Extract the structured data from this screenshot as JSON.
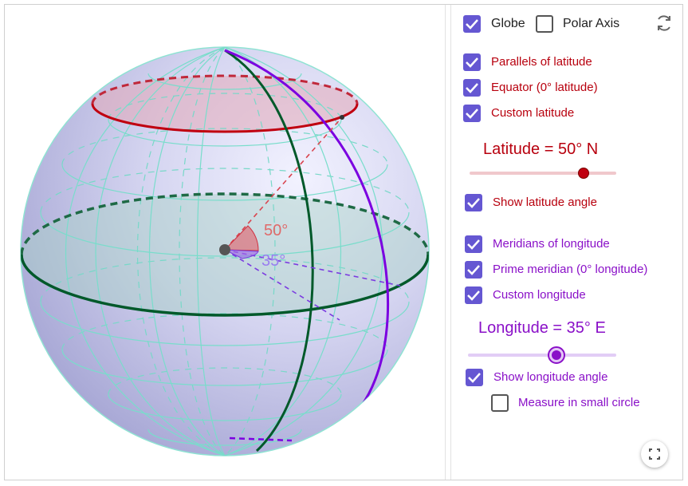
{
  "graphics": {
    "angle_latitude_label": "50°",
    "angle_longitude_label": "35°"
  },
  "panel": {
    "globe_label": "Globe",
    "globe_checked": true,
    "polar_axis_label": "Polar Axis",
    "polar_axis_checked": false,
    "parallels_label": "Parallels of latitude",
    "parallels_checked": true,
    "equator_label": "Equator (0° latitude)",
    "equator_checked": true,
    "custom_latitude_label": "Custom latitude",
    "custom_latitude_checked": true,
    "latitude_title": "Latitude = 50° N",
    "latitude_value": 50,
    "latitude_range": [
      -90,
      90
    ],
    "show_latitude_angle_label": "Show latitude angle",
    "show_latitude_angle_checked": true,
    "meridians_label": "Meridians of longitude",
    "meridians_checked": true,
    "prime_meridian_label": "Prime meridian (0° longitude)",
    "prime_meridian_checked": true,
    "custom_longitude_label": "Custom longitude",
    "custom_longitude_checked": true,
    "longitude_title": "Longitude = 35° E",
    "longitude_value": 35,
    "longitude_range": [
      -180,
      180
    ],
    "show_longitude_angle_label": "Show longitude angle",
    "show_longitude_angle_checked": true,
    "measure_small_circle_label": "Measure in small circle",
    "measure_small_circle_checked": false
  },
  "colors": {
    "accent": "#6557d2",
    "latitude": "#b8000e",
    "longitude": "#8a10c8",
    "equator": "#005a2a",
    "grid": "#7fe0d0"
  },
  "icons": {
    "reset": "refresh-icon",
    "fullscreen": "fullscreen-icon"
  }
}
